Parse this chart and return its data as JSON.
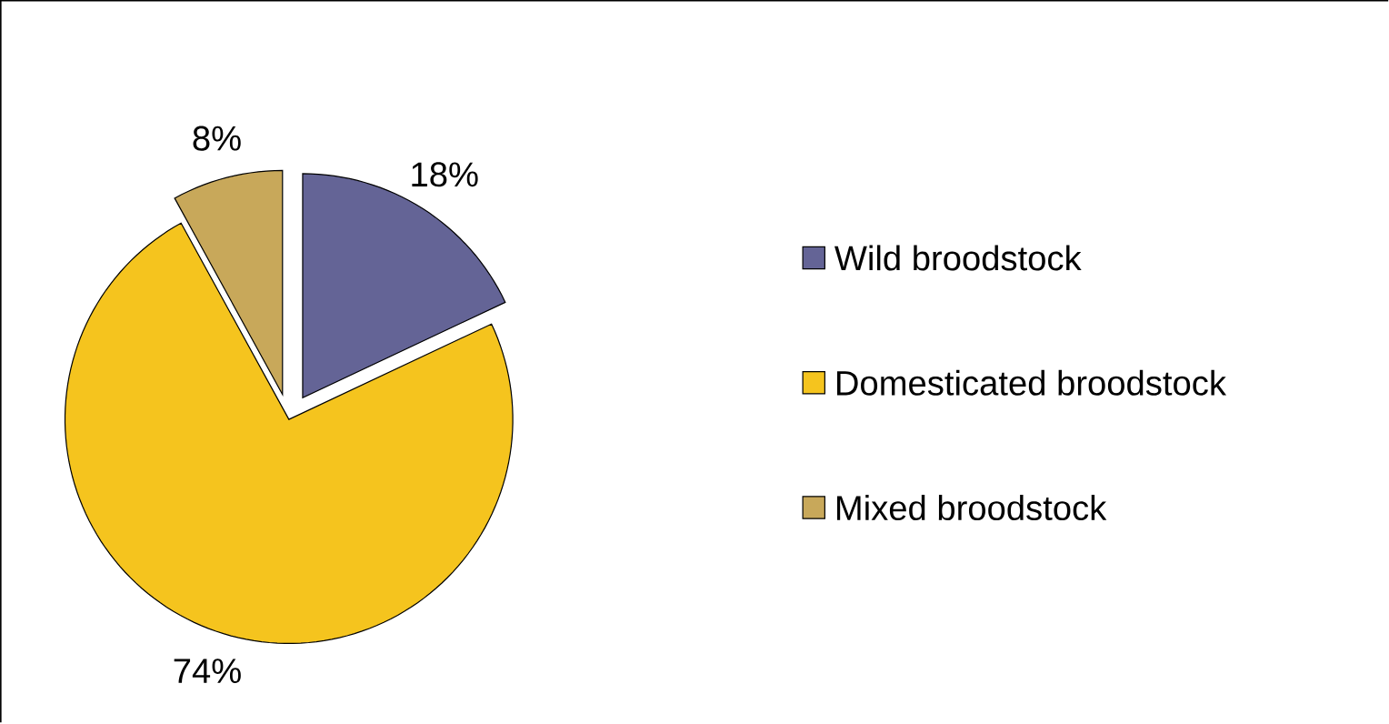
{
  "chart_data": {
    "type": "pie",
    "categories": [
      "Wild broodstock",
      "Domesticated broodstock",
      "Mixed broodstock"
    ],
    "values": [
      18,
      74,
      8
    ],
    "colors": [
      "#646496",
      "#f5c41e",
      "#c8a85a"
    ],
    "value_labels": [
      "18%",
      "74%",
      "8%"
    ],
    "legend": "right"
  }
}
